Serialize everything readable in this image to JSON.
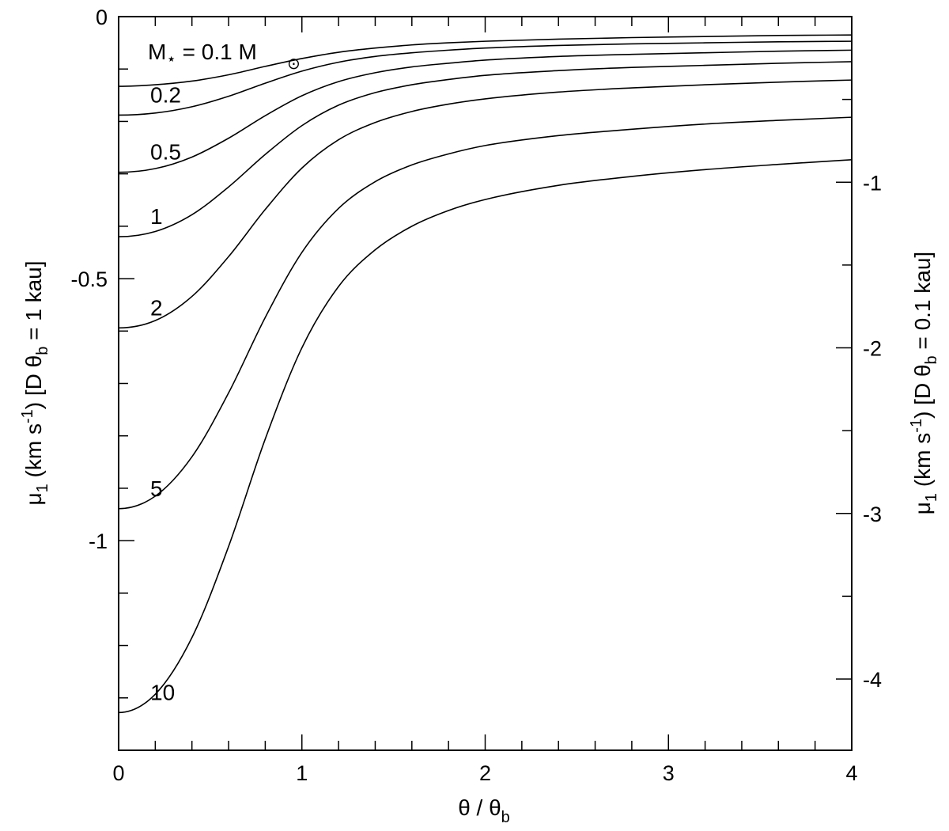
{
  "chart_data": {
    "type": "line",
    "xlabel": {
      "main": "θ / θ",
      "sub": "b"
    },
    "ylabel_left": {
      "a": "μ",
      "a_sub": "1",
      "b": " (km s",
      "b_sup": "-1",
      "c": ") [D θ",
      "c_sub": "b",
      "d": " = 1 kau]"
    },
    "ylabel_right": {
      "a": "μ",
      "a_sub": "1",
      "b": " (km s",
      "b_sup": "-1",
      "c": ") [D θ",
      "c_sub": "b",
      "d": " = 0.1 kau]"
    },
    "xlim": [
      0,
      4
    ],
    "ylim_left": [
      -1.4,
      0
    ],
    "ylim_right": [
      -4.43,
      0
    ],
    "x_ticks": [
      {
        "value": 0,
        "label": "0"
      },
      {
        "value": 1,
        "label": "1"
      },
      {
        "value": 2,
        "label": "2"
      },
      {
        "value": 3,
        "label": "3"
      },
      {
        "value": 4,
        "label": "4"
      }
    ],
    "y_ticks_left": [
      {
        "value": 0,
        "label": "0"
      },
      {
        "value": -0.5,
        "label": "-0.5"
      },
      {
        "value": -1,
        "label": "-1"
      }
    ],
    "y_ticks_right": [
      {
        "value": -1,
        "label": "-1"
      },
      {
        "value": -2,
        "label": "-2"
      },
      {
        "value": -3,
        "label": "-3"
      },
      {
        "value": -4,
        "label": "-4"
      }
    ],
    "x": [
      0,
      0.2,
      0.4,
      0.6,
      0.8,
      1.0,
      1.2,
      1.4,
      1.6,
      1.8,
      2.0,
      2.4,
      2.8,
      3.2,
      3.6,
      4.0
    ],
    "series": [
      {
        "label": "M⋆ = 0.1 M",
        "values": [
          -0.133,
          -0.13,
          -0.123,
          -0.111,
          -0.095,
          -0.08,
          -0.068,
          -0.06,
          -0.054,
          -0.05,
          -0.047,
          -0.043,
          -0.04,
          -0.038,
          -0.036,
          -0.035
        ]
      },
      {
        "label": "0.2",
        "values": [
          -0.188,
          -0.184,
          -0.172,
          -0.152,
          -0.127,
          -0.104,
          -0.087,
          -0.076,
          -0.069,
          -0.064,
          -0.06,
          -0.055,
          -0.052,
          -0.05,
          -0.048,
          -0.047
        ]
      },
      {
        "label": "0.5",
        "values": [
          -0.297,
          -0.29,
          -0.268,
          -0.232,
          -0.189,
          -0.151,
          -0.124,
          -0.107,
          -0.096,
          -0.089,
          -0.083,
          -0.076,
          -0.072,
          -0.069,
          -0.066,
          -0.064
        ]
      },
      {
        "label": "1",
        "values": [
          -0.42,
          -0.41,
          -0.378,
          -0.325,
          -0.263,
          -0.208,
          -0.169,
          -0.145,
          -0.13,
          -0.12,
          -0.112,
          -0.103,
          -0.097,
          -0.093,
          -0.089,
          -0.086
        ]
      },
      {
        "label": "2",
        "values": [
          -0.594,
          -0.58,
          -0.534,
          -0.458,
          -0.368,
          -0.289,
          -0.235,
          -0.202,
          -0.181,
          -0.167,
          -0.157,
          -0.144,
          -0.136,
          -0.13,
          -0.125,
          -0.121
        ]
      },
      {
        "label": "5",
        "values": [
          -0.939,
          -0.915,
          -0.84,
          -0.718,
          -0.574,
          -0.45,
          -0.366,
          -0.315,
          -0.283,
          -0.262,
          -0.246,
          -0.227,
          -0.215,
          -0.205,
          -0.198,
          -0.192
        ]
      },
      {
        "label": "10",
        "values": [
          -1.328,
          -1.293,
          -1.185,
          -1.011,
          -0.806,
          -0.632,
          -0.515,
          -0.445,
          -0.4,
          -0.37,
          -0.349,
          -0.322,
          -0.305,
          -0.292,
          -0.282,
          -0.273
        ]
      }
    ],
    "label_subscript_char": "⋆",
    "sun_symbol": "⊙",
    "grid": false,
    "legend": "none (curves labeled inline on the left)"
  }
}
